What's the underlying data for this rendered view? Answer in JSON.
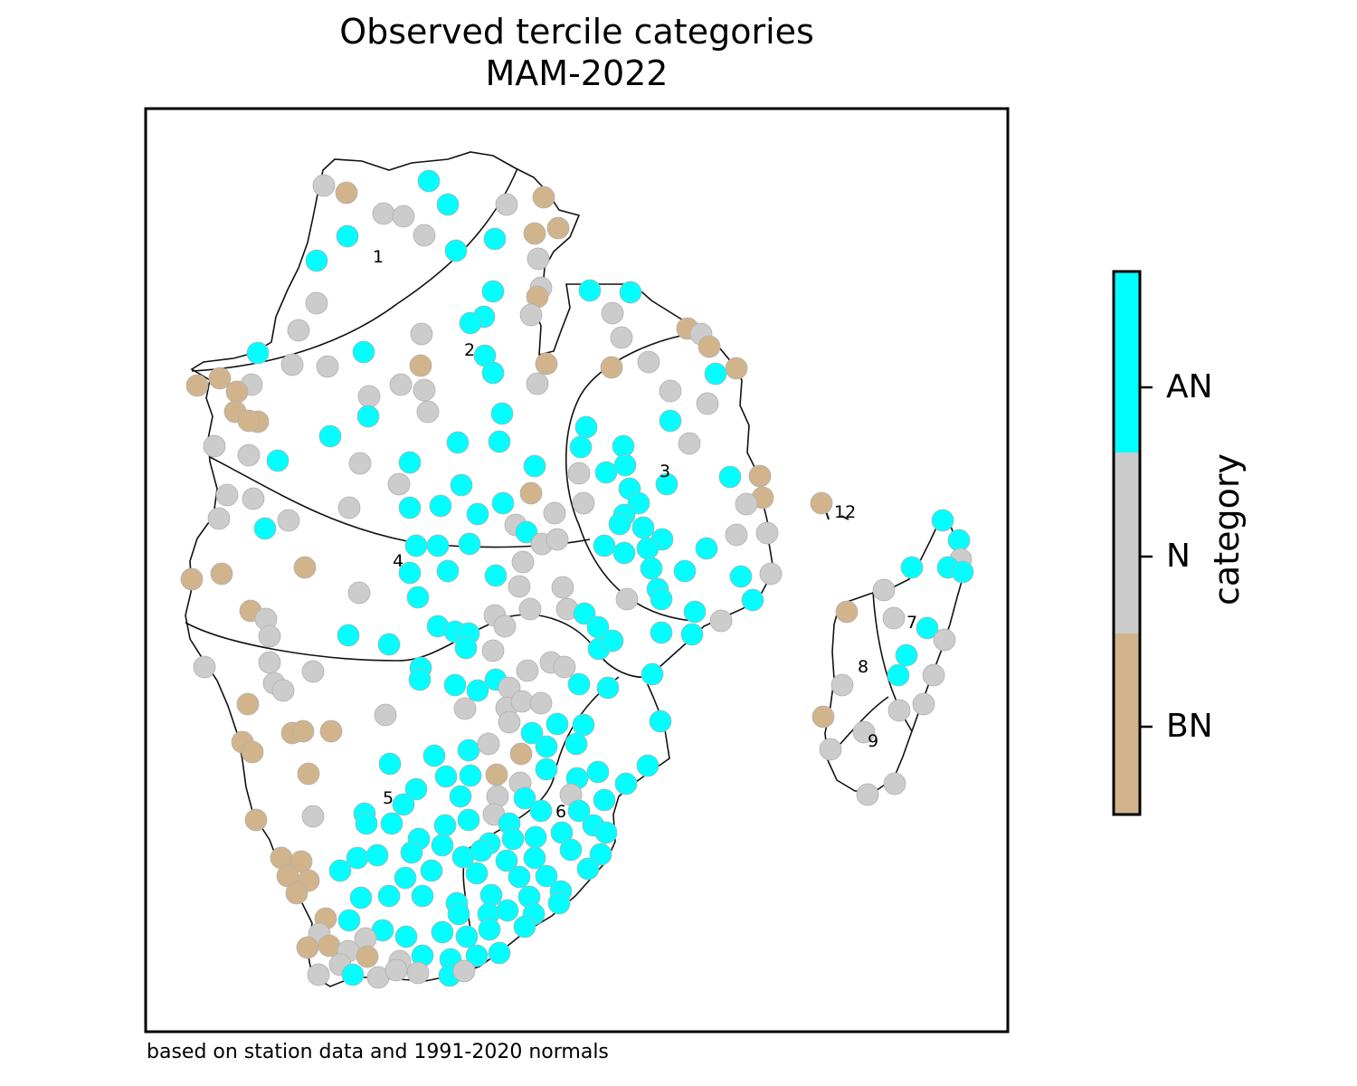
{
  "title_line1": "Observed tercile categories",
  "title_line2": "MAM-2022",
  "footnote": "based on station data and 1991-2020 normals",
  "colorbar": {
    "title": "category",
    "categories": [
      {
        "label": "BN",
        "color": "#d2b48c"
      },
      {
        "label": "N",
        "color": "#cccccc"
      },
      {
        "label": "AN",
        "color": "#00ffff"
      }
    ]
  },
  "regions": [
    "1",
    "2",
    "3",
    "4",
    "5",
    "6",
    "7",
    "8",
    "9",
    "12"
  ],
  "colors": {
    "BN": "#d2b48c",
    "N": "#cccccc",
    "AN": "#00ffff",
    "outline": "#000000"
  }
}
